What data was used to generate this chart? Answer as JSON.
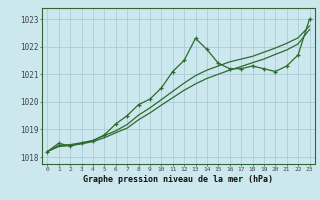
{
  "xlabel": "Graphe pression niveau de la mer (hPa)",
  "background_color": "#cce8ee",
  "grid_color": "#aacdd6",
  "line_color": "#2d6a2d",
  "x_values": [
    0,
    1,
    2,
    3,
    4,
    5,
    6,
    7,
    8,
    9,
    10,
    11,
    12,
    13,
    14,
    15,
    16,
    17,
    18,
    19,
    20,
    21,
    22,
    23
  ],
  "y_main": [
    1018.2,
    1018.5,
    1018.4,
    1018.5,
    1018.6,
    1018.8,
    1019.2,
    1019.5,
    1019.9,
    1020.1,
    1020.5,
    1021.1,
    1021.5,
    1022.3,
    1021.9,
    1021.4,
    1021.2,
    1021.2,
    1021.3,
    1021.2,
    1021.1,
    1021.3,
    1021.7,
    1023.0
  ],
  "y_trend1": [
    1018.2,
    1018.38,
    1018.42,
    1018.48,
    1018.56,
    1018.7,
    1018.88,
    1019.05,
    1019.35,
    1019.6,
    1019.88,
    1020.15,
    1020.42,
    1020.65,
    1020.85,
    1021.0,
    1021.15,
    1021.28,
    1021.42,
    1021.55,
    1021.72,
    1021.88,
    1022.1,
    1022.62
  ],
  "y_trend2": [
    1018.2,
    1018.42,
    1018.45,
    1018.52,
    1018.6,
    1018.78,
    1018.95,
    1019.18,
    1019.52,
    1019.78,
    1020.08,
    1020.38,
    1020.68,
    1020.95,
    1021.15,
    1021.3,
    1021.45,
    1021.55,
    1021.65,
    1021.8,
    1021.95,
    1022.12,
    1022.32,
    1022.75
  ],
  "ylim": [
    1017.75,
    1023.4
  ],
  "yticks": [
    1018,
    1019,
    1020,
    1021,
    1022,
    1023
  ],
  "xlim": [
    -0.5,
    23.5
  ],
  "xticks": [
    0,
    1,
    2,
    3,
    4,
    5,
    6,
    7,
    8,
    9,
    10,
    11,
    12,
    13,
    14,
    15,
    16,
    17,
    18,
    19,
    20,
    21,
    22,
    23
  ]
}
